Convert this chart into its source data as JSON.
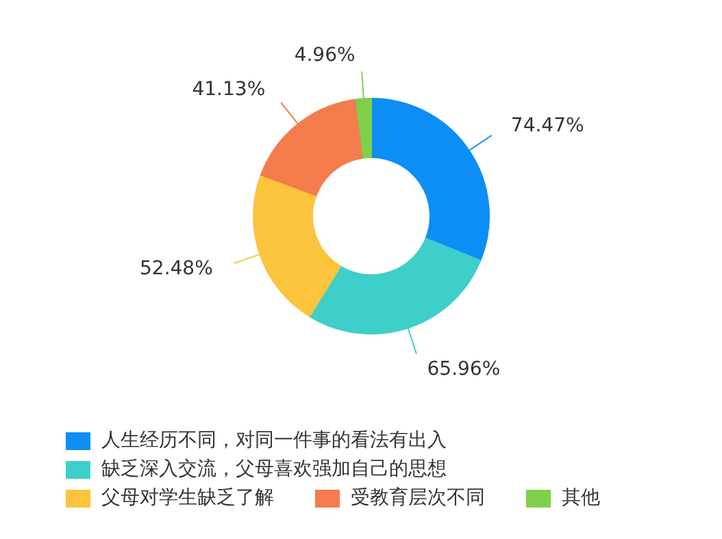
{
  "chart_data": {
    "type": "donut",
    "categories": [
      "人生经历不同，对同一件事的看法有出入",
      "缺乏深入交流，父母喜欢强加自己的思想",
      "父母对学生缺乏了解",
      "受教育层次不同",
      "其他"
    ],
    "values": [
      74.47,
      65.96,
      52.48,
      41.13,
      4.96
    ],
    "value_labels": [
      "74.47%",
      "65.96%",
      "52.48%",
      "41.13%",
      "4.96%"
    ],
    "colors": [
      "#0d8ef5",
      "#3ecfcb",
      "#fbc43c",
      "#f47c4c",
      "#7ed04b"
    ],
    "legend": "bottom"
  }
}
